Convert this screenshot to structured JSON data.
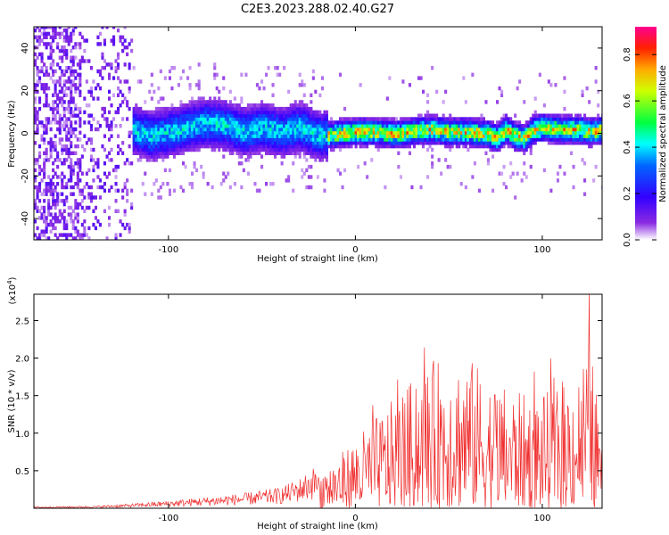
{
  "title": "C2E3.2023.288.02.40.G27",
  "chart_data": [
    {
      "type": "heatmap",
      "xlabel": "Height of straight line (km)",
      "ylabel": "Frequency (Hz)",
      "xlim": [
        -172,
        132
      ],
      "ylim": [
        -50,
        50
      ],
      "xticks": [
        -100,
        0,
        100
      ],
      "yticks": [
        -40,
        -20,
        0,
        20,
        40
      ],
      "colorbar": {
        "label": "Normalized spectral amplitude",
        "range": [
          0,
          0.92
        ],
        "ticks": [
          0.0,
          0.2,
          0.4,
          0.6,
          0.8
        ],
        "colormap": [
          "#ffffff",
          "#6a00ff",
          "#0000ff",
          "#00ffff",
          "#00ff00",
          "#ffff00",
          "#ff0000",
          "#ff00a0"
        ]
      },
      "ridge_center_hz": [
        [
          -150,
          0
        ],
        [
          -140,
          2
        ],
        [
          -130,
          0
        ],
        [
          -120,
          1
        ],
        [
          -110,
          -2
        ],
        [
          -100,
          0
        ],
        [
          -90,
          2
        ],
        [
          -80,
          4
        ],
        [
          -70,
          3
        ],
        [
          -60,
          0
        ],
        [
          -50,
          2
        ],
        [
          -40,
          0
        ],
        [
          -30,
          2
        ],
        [
          -20,
          -2
        ],
        [
          -10,
          -1
        ],
        [
          0,
          0
        ],
        [
          10,
          0
        ],
        [
          20,
          -1
        ],
        [
          30,
          0
        ],
        [
          40,
          1
        ],
        [
          50,
          0
        ],
        [
          60,
          0
        ],
        [
          70,
          -1
        ],
        [
          75,
          -3
        ],
        [
          80,
          1
        ],
        [
          85,
          -2
        ],
        [
          90,
          -3
        ],
        [
          95,
          1
        ],
        [
          100,
          2
        ],
        [
          110,
          1
        ],
        [
          120,
          1
        ],
        [
          125,
          0
        ],
        [
          132,
          1
        ]
      ]
    },
    {
      "type": "line",
      "xlabel": "Height of straight line (km)",
      "ylabel": "SNR (10 * v/v)",
      "ymultiplier": "(x10",
      "ymultiplier_exp": "4",
      "ymultiplier_close": ")",
      "xlim": [
        -172,
        132
      ],
      "ylim": [
        0,
        2.85
      ],
      "xticks": [
        -100,
        0,
        100
      ],
      "yticks": [
        0.5,
        1.0,
        1.5,
        2.0,
        2.5
      ],
      "yticklabels": [
        "0.5",
        "1.0",
        "1.5",
        "2.0",
        "2.5"
      ],
      "color": "#f03030",
      "envelope": [
        [
          -172,
          0.02
        ],
        [
          -140,
          0.03
        ],
        [
          -120,
          0.06
        ],
        [
          -100,
          0.1
        ],
        [
          -80,
          0.15
        ],
        [
          -60,
          0.2
        ],
        [
          -40,
          0.28
        ],
        [
          -30,
          0.4
        ],
        [
          -20,
          0.6
        ],
        [
          -10,
          0.8
        ],
        [
          0,
          1.1
        ],
        [
          10,
          1.4
        ],
        [
          20,
          1.7
        ],
        [
          30,
          2.0
        ],
        [
          40,
          2.3
        ],
        [
          50,
          2.4
        ],
        [
          60,
          2.4
        ],
        [
          70,
          2.1
        ],
        [
          80,
          1.9
        ],
        [
          90,
          1.8
        ],
        [
          100,
          1.8
        ],
        [
          110,
          1.9
        ],
        [
          120,
          2.2
        ],
        [
          125,
          2.75
        ],
        [
          130,
          1.6
        ],
        [
          132,
          1.2
        ]
      ]
    }
  ]
}
